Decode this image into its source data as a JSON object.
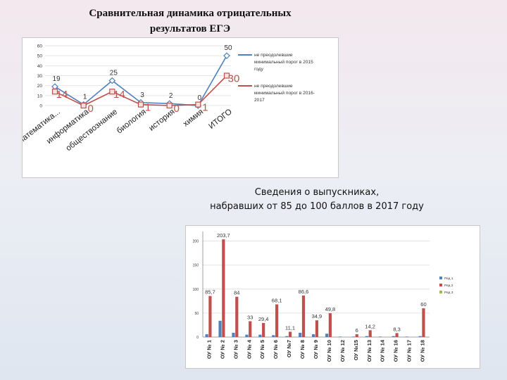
{
  "chart_data": [
    {
      "type": "line",
      "title_line1": "Сравнительная динамика отрицательных",
      "title_line2": "результатов ЕГЭ",
      "categories": [
        "математика...",
        "информатика",
        "обществознание",
        "биология",
        "история",
        "химия",
        "ИТОГО"
      ],
      "y_ticks": [
        "60",
        "50",
        "40",
        "30",
        "20",
        "10",
        "0"
      ],
      "ylim": [
        0,
        60
      ],
      "series": [
        {
          "name": "не преодолевшие минимальный порог в 2015 году",
          "legend_lines": [
            "не преодолевшие",
            "минимальный порог в 2015",
            "году"
          ],
          "color": "#4f81bd",
          "marker": "diamond",
          "values": [
            19,
            1,
            25,
            3,
            2,
            0,
            50
          ],
          "labels": [
            "19",
            "1",
            "25",
            "3",
            "2",
            "0",
            "50"
          ]
        },
        {
          "name": "не преодолевшие минимальный порог в 2016-2017 году",
          "legend_lines": [
            "не преодолевшие",
            "минимальный порог в 2016-",
            "2017"
          ],
          "color": "#c0504d",
          "marker": "square",
          "values": [
            14,
            0,
            14,
            1,
            0,
            1,
            30
          ],
          "labels": [
            "14",
            "0",
            "14",
            "1",
            "0",
            "1",
            "30"
          ]
        }
      ]
    },
    {
      "type": "bar",
      "title_line1": "Сведения о выпускниках,",
      "title_line2": "набравших от 85 до 100 баллов в 2017 году",
      "categories": [
        "ОУ № 1",
        "ОУ № 2",
        "ОУ № 3",
        "ОУ № 4",
        "ОУ № 5",
        "ОУ № 6",
        "ОУ №7",
        "ОУ № 8",
        "ОУ № 9",
        "ОУ № 10",
        "ОУ № 12",
        "ОУ №15",
        "ОУ № 13",
        "ОУ № 14",
        "ОУ № 16",
        "ОУ № 17",
        "ОУ № 18"
      ],
      "y_ticks": [
        "200",
        "150",
        "100",
        "50",
        "0"
      ],
      "ylim": [
        0,
        220
      ],
      "legend_lines": [
        "Ряд 1",
        "Ряд 2",
        "Ряд 3"
      ],
      "series": [
        {
          "color": "#4f81bd",
          "values": [
            6,
            34,
            9,
            5,
            5,
            4,
            2,
            9,
            6,
            7,
            1,
            1,
            2,
            1,
            2,
            1,
            2
          ]
        },
        {
          "color": "#c0504d",
          "values": [
            85.7,
            203.7,
            84,
            33,
            29.4,
            68.1,
            11.1,
            86.6,
            34.9,
            49.8,
            0,
            6,
            14.2,
            0,
            8.3,
            0,
            60
          ],
          "labels": [
            "85,7",
            "203,7",
            "84",
            "33",
            "29,4",
            "68,1",
            "11,1",
            "86,6",
            "34,9",
            "49,8",
            "",
            "6",
            "14,2",
            "",
            "8,3",
            "",
            "60"
          ]
        },
        {
          "color": "#9bbb59",
          "values": [
            0.5,
            0.5,
            0.5,
            0.5,
            0.5,
            0.5,
            0.5,
            0.5,
            0.5,
            0.5,
            0,
            0,
            0,
            0,
            0,
            0,
            0.5
          ]
        }
      ]
    }
  ]
}
